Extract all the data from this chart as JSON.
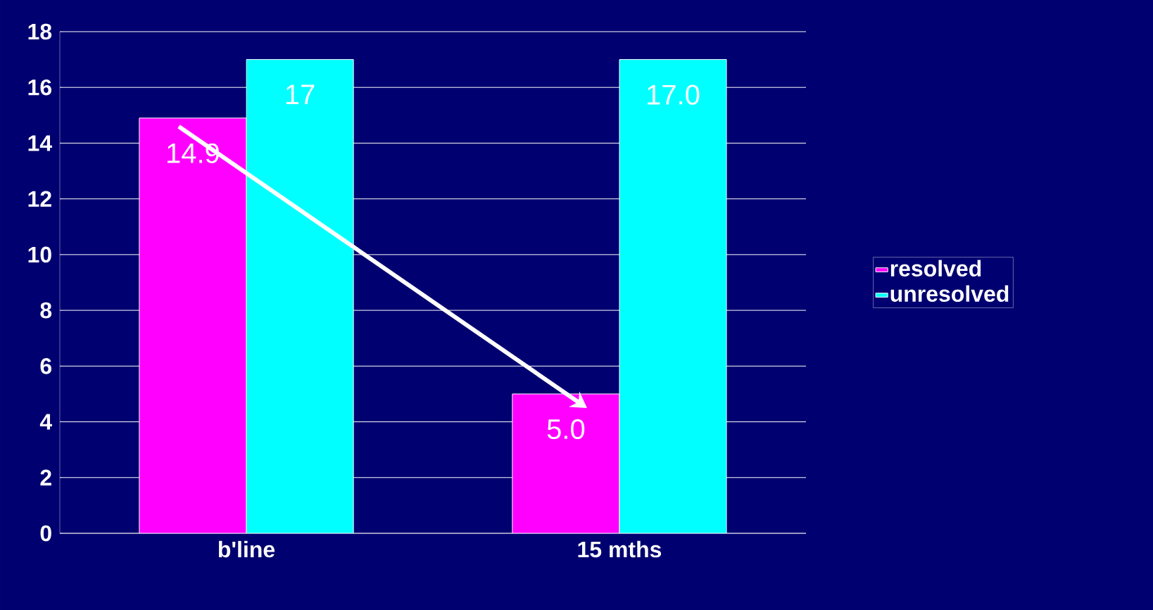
{
  "chart_data": {
    "type": "bar",
    "categories": [
      "b'line",
      "15 mths"
    ],
    "series": [
      {
        "name": "resolved",
        "color": "#ff00ff",
        "values": [
          14.9,
          5.0
        ],
        "value_labels": [
          "14.9",
          "5.0"
        ]
      },
      {
        "name": "unresolved",
        "color": "#00ffff",
        "values": [
          17,
          17.0
        ],
        "value_labels": [
          "17",
          "17.0"
        ]
      }
    ],
    "ylim": [
      0,
      18
    ],
    "yticks": [
      0,
      2,
      4,
      6,
      8,
      10,
      12,
      14,
      16,
      18
    ],
    "grid": "y",
    "legend": "right"
  }
}
